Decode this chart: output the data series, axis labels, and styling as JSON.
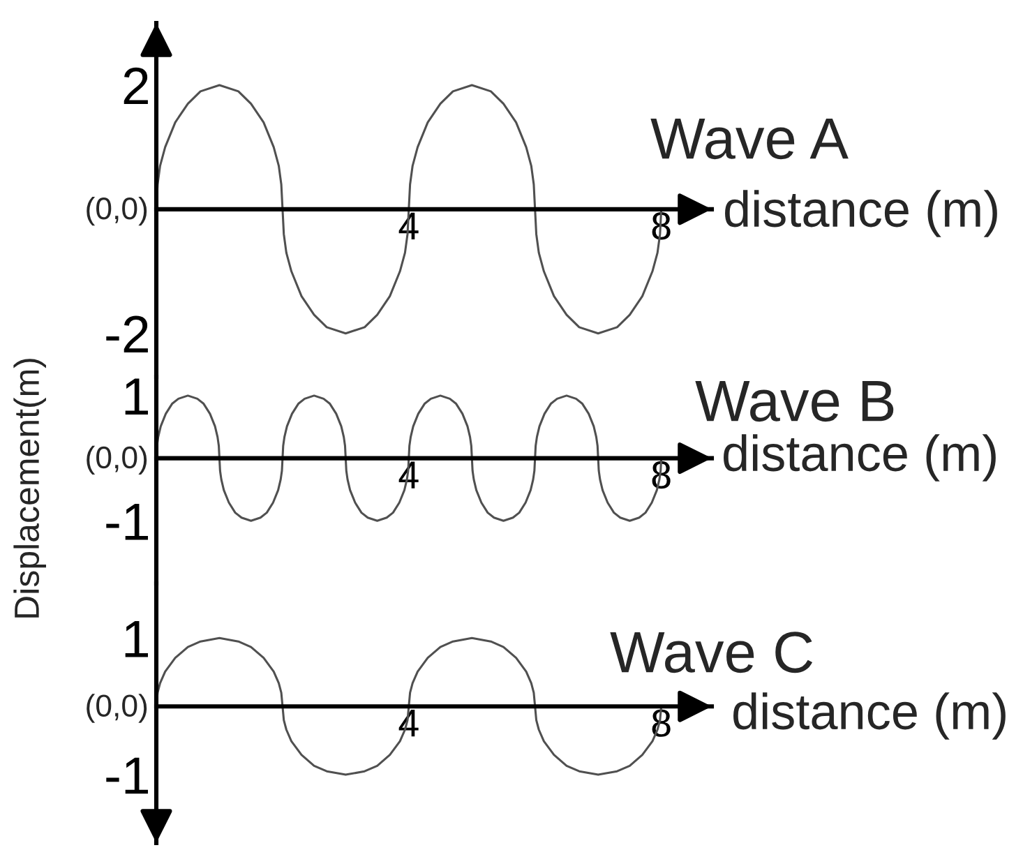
{
  "chart_data": [
    {
      "type": "line",
      "title": "Wave A",
      "xlabel": "distance (m)",
      "color": "#505050",
      "x": [
        0,
        0.02,
        0.06,
        0.14,
        0.3,
        0.5,
        0.7,
        1,
        1.3,
        1.5,
        1.7,
        1.86,
        1.94,
        1.98,
        2,
        2.02,
        2.06,
        2.14,
        2.3,
        2.5,
        2.7,
        3,
        3.3,
        3.5,
        3.7,
        3.86,
        3.94,
        3.98,
        4,
        4.02,
        4.06,
        4.14,
        4.3,
        4.5,
        4.7,
        5,
        5.3,
        5.5,
        5.7,
        5.86,
        5.94,
        5.98,
        6,
        6.02,
        6.06,
        6.14,
        6.3,
        6.5,
        6.7,
        7,
        7.3,
        7.5,
        7.7,
        7.86,
        7.94,
        7.98,
        8
      ],
      "values": [
        0,
        0.4,
        0.7,
        1,
        1.4,
        1.7,
        1.9,
        2,
        1.9,
        1.7,
        1.4,
        1,
        0.7,
        0.4,
        0,
        -0.4,
        -0.7,
        -1,
        -1.4,
        -1.7,
        -1.9,
        -2,
        -1.9,
        -1.7,
        -1.4,
        -1,
        -0.7,
        -0.4,
        0,
        0.4,
        0.7,
        1,
        1.4,
        1.7,
        1.9,
        2,
        1.9,
        1.7,
        1.4,
        1,
        0.7,
        0.4,
        0,
        -0.4,
        -0.7,
        -1,
        -1.4,
        -1.7,
        -1.9,
        -2,
        -1.9,
        -1.7,
        -1.4,
        -1,
        -0.7,
        -0.4,
        0
      ],
      "xlim": [
        0,
        8.8
      ],
      "xticks": [
        4,
        8
      ],
      "ylim": [
        -2.7,
        3.0
      ],
      "yticks": [
        -2,
        2
      ],
      "annotations": [
        "(0,0)"
      ]
    },
    {
      "type": "line",
      "title": "Wave B",
      "xlabel": "distance (m)",
      "ylabel": "Displacement(m)",
      "color": "#505050",
      "x": [
        0,
        0.01,
        0.03,
        0.07,
        0.15,
        0.25,
        0.35,
        0.5,
        0.65,
        0.75,
        0.85,
        0.93,
        0.97,
        0.99,
        1,
        1.01,
        1.03,
        1.07,
        1.15,
        1.25,
        1.35,
        1.5,
        1.65,
        1.75,
        1.85,
        1.93,
        1.97,
        1.99,
        2,
        2.01,
        2.03,
        2.07,
        2.15,
        2.25,
        2.35,
        2.5,
        2.65,
        2.75,
        2.85,
        2.93,
        2.97,
        2.99,
        3,
        3.01,
        3.03,
        3.07,
        3.15,
        3.25,
        3.35,
        3.5,
        3.65,
        3.75,
        3.85,
        3.93,
        3.97,
        3.99,
        4,
        4.01,
        4.03,
        4.07,
        4.15,
        4.25,
        4.35,
        4.5,
        4.65,
        4.75,
        4.85,
        4.93,
        4.97,
        4.99,
        5,
        5.01,
        5.03,
        5.07,
        5.15,
        5.25,
        5.35,
        5.5,
        5.65,
        5.75,
        5.85,
        5.93,
        5.97,
        5.99,
        6,
        6.01,
        6.03,
        6.07,
        6.15,
        6.25,
        6.35,
        6.5,
        6.65,
        6.75,
        6.85,
        6.93,
        6.97,
        6.99,
        7,
        7.01,
        7.03,
        7.07,
        7.15,
        7.25,
        7.35,
        7.5,
        7.65,
        7.75,
        7.85,
        7.93,
        7.97,
        7.99,
        8
      ],
      "values": [
        0,
        0.2,
        0.34,
        0.51,
        0.71,
        0.87,
        0.95,
        1,
        0.95,
        0.87,
        0.71,
        0.51,
        0.34,
        0.2,
        0,
        -0.2,
        -0.34,
        -0.51,
        -0.71,
        -0.87,
        -0.95,
        -1,
        -0.95,
        -0.87,
        -0.71,
        -0.51,
        -0.34,
        -0.2,
        0,
        0.2,
        0.34,
        0.51,
        0.71,
        0.87,
        0.95,
        1,
        0.95,
        0.87,
        0.71,
        0.51,
        0.34,
        0.2,
        0,
        -0.2,
        -0.34,
        -0.51,
        -0.71,
        -0.87,
        -0.95,
        -1,
        -0.95,
        -0.87,
        -0.71,
        -0.51,
        -0.34,
        -0.2,
        0,
        0.2,
        0.34,
        0.51,
        0.71,
        0.87,
        0.95,
        1,
        0.95,
        0.87,
        0.71,
        0.51,
        0.34,
        0.2,
        0,
        -0.2,
        -0.34,
        -0.51,
        -0.71,
        -0.87,
        -0.95,
        -1,
        -0.95,
        -0.87,
        -0.71,
        -0.51,
        -0.34,
        -0.2,
        0,
        0.2,
        0.34,
        0.51,
        0.71,
        0.87,
        0.95,
        1,
        0.95,
        0.87,
        0.71,
        0.51,
        0.34,
        0.2,
        0,
        -0.2,
        -0.34,
        -0.51,
        -0.71,
        -0.87,
        -0.95,
        -1,
        -0.95,
        -0.87,
        -0.71,
        -0.51,
        -0.34,
        -0.2,
        0
      ],
      "xlim": [
        0,
        8.8
      ],
      "xticks": [
        4,
        8
      ],
      "ylim": [
        -2.0,
        1.3
      ],
      "yticks": [
        -1,
        1
      ],
      "annotations": [
        "(0,0)"
      ]
    },
    {
      "type": "line",
      "title": "Wave C",
      "xlabel": "distance (m)",
      "color": "#505050",
      "x": [
        0,
        0.02,
        0.06,
        0.14,
        0.3,
        0.5,
        0.7,
        1,
        1.3,
        1.5,
        1.7,
        1.86,
        1.94,
        1.98,
        2,
        2.02,
        2.06,
        2.14,
        2.3,
        2.5,
        2.7,
        3,
        3.3,
        3.5,
        3.7,
        3.86,
        3.94,
        3.98,
        4,
        4.02,
        4.06,
        4.14,
        4.3,
        4.5,
        4.7,
        5,
        5.3,
        5.5,
        5.7,
        5.86,
        5.94,
        5.98,
        6,
        6.02,
        6.06,
        6.14,
        6.3,
        6.5,
        6.7,
        7,
        7.3,
        7.5,
        7.7,
        7.86,
        7.94,
        7.98,
        8
      ],
      "values": [
        0,
        0.2,
        0.34,
        0.51,
        0.71,
        0.87,
        0.95,
        1,
        0.95,
        0.87,
        0.71,
        0.51,
        0.34,
        0.2,
        0,
        -0.2,
        -0.34,
        -0.51,
        -0.71,
        -0.87,
        -0.95,
        -1,
        -0.95,
        -0.87,
        -0.71,
        -0.51,
        -0.34,
        -0.2,
        0,
        0.2,
        0.34,
        0.51,
        0.71,
        0.87,
        0.95,
        1,
        0.95,
        0.87,
        0.71,
        0.51,
        0.34,
        0.2,
        0,
        -0.2,
        -0.34,
        -0.51,
        -0.71,
        -0.87,
        -0.95,
        -1,
        -0.95,
        -0.87,
        -0.71,
        -0.51,
        -0.34,
        -0.2,
        0
      ],
      "xlim": [
        0,
        8.8
      ],
      "xticks": [
        4,
        8
      ],
      "ylim": [
        -2.0,
        1.8
      ],
      "yticks": [
        -1,
        1
      ],
      "annotations": [
        "(0,0)"
      ]
    }
  ]
}
